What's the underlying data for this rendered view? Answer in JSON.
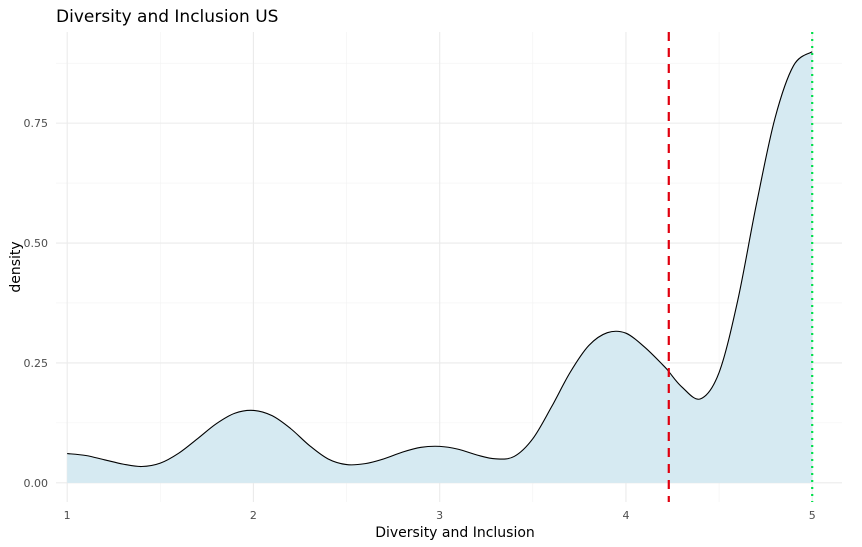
{
  "chart_data": {
    "type": "area",
    "title": "Diversity and Inclusion US",
    "xlabel": "Diversity and Inclusion",
    "ylabel": "density",
    "xlim": [
      0.94,
      5.16
    ],
    "ylim": [
      -0.04,
      0.94
    ],
    "x_ticks": [
      "1",
      "2",
      "3",
      "4",
      "5"
    ],
    "y_ticks": [
      "0.00",
      "0.25",
      "0.50",
      "0.75"
    ],
    "grid": true,
    "legend": "none",
    "fill_color": "#d6eaf2",
    "line_color": "#000000",
    "series": [
      {
        "x": [
          1.0,
          1.1,
          1.2,
          1.3,
          1.4,
          1.5,
          1.6,
          1.7,
          1.8,
          1.9,
          2.0,
          2.1,
          2.2,
          2.3,
          2.4,
          2.5,
          2.6,
          2.7,
          2.8,
          2.9,
          3.0,
          3.1,
          3.2,
          3.3,
          3.4,
          3.5,
          3.6,
          3.7,
          3.8,
          3.9,
          4.0,
          4.1,
          4.2,
          4.23,
          4.3,
          4.4,
          4.5,
          4.6,
          4.7,
          4.8,
          4.9,
          5.0
        ],
        "y": [
          0.061,
          0.057,
          0.048,
          0.039,
          0.034,
          0.041,
          0.062,
          0.092,
          0.123,
          0.145,
          0.151,
          0.14,
          0.113,
          0.078,
          0.05,
          0.038,
          0.04,
          0.05,
          0.064,
          0.074,
          0.076,
          0.07,
          0.058,
          0.05,
          0.055,
          0.092,
          0.158,
          0.23,
          0.286,
          0.313,
          0.312,
          0.283,
          0.245,
          0.232,
          0.2,
          0.175,
          0.23,
          0.38,
          0.58,
          0.76,
          0.87,
          0.899
        ]
      }
    ],
    "reference_lines": [
      {
        "x": 4.23,
        "color": "#e0000f",
        "style": "dashed"
      },
      {
        "x": 5.0,
        "color": "#00e04a",
        "style": "dotted"
      }
    ]
  }
}
